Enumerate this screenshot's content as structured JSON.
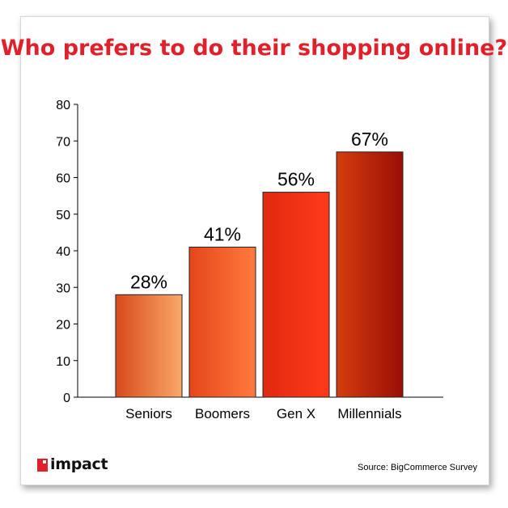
{
  "chart_data": {
    "type": "bar",
    "title": "Who prefers to do their shopping online?",
    "categories": [
      "Seniors",
      "Boomers",
      "Gen X",
      "Millennials"
    ],
    "values": [
      28,
      41,
      56,
      67
    ],
    "data_labels": [
      "28%",
      "41%",
      "56%",
      "67%"
    ],
    "ylim": [
      0,
      80
    ],
    "yticks": [
      0,
      10,
      20,
      30,
      40,
      50,
      60,
      70,
      80
    ],
    "xlabel": "",
    "ylabel": "",
    "grid": false,
    "legend": "none",
    "bar_gradients": [
      [
        "#d94a1c",
        "#f9a86a"
      ],
      [
        "#e5461a",
        "#ff7a3e"
      ],
      [
        "#e02a12",
        "#ff3a1a"
      ],
      [
        "#d43d0e",
        "#9a0e06"
      ]
    ]
  },
  "footer": {
    "brand": "impact",
    "source": "Source: BigCommerce Survey"
  }
}
